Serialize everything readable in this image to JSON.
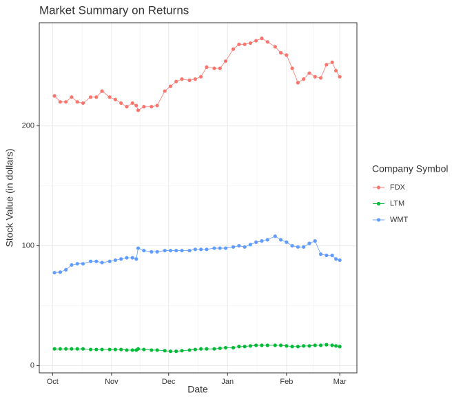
{
  "chart_data": {
    "type": "line",
    "title": "Market Summary on Returns",
    "x_label": "Date",
    "y_label": "Stock Value (in dollars)",
    "legend_title": "Company Symbol",
    "legend_position": "right",
    "grid": true,
    "markers": true,
    "x": [
      1,
      4,
      7,
      10,
      13,
      16,
      20,
      23,
      26,
      30,
      33,
      36,
      39,
      42,
      44,
      45,
      48,
      52,
      55,
      59,
      62,
      65,
      68,
      72,
      75,
      78,
      81,
      85,
      88,
      91,
      95,
      98,
      101,
      104,
      107,
      110,
      113,
      117,
      120,
      123,
      126,
      129,
      132,
      135,
      138,
      141,
      144,
      147,
      149,
      151
    ],
    "xlim": [
      -7,
      160
    ],
    "xticks": [
      {
        "value": 0,
        "label": "Oct"
      },
      {
        "value": 31,
        "label": "Nov"
      },
      {
        "value": 61,
        "label": "Dec"
      },
      {
        "value": 92,
        "label": "Jan"
      },
      {
        "value": 123,
        "label": "Feb"
      },
      {
        "value": 151,
        "label": "Mar"
      }
    ],
    "ylim": [
      -6,
      286
    ],
    "yticks": [
      0,
      100,
      200
    ],
    "series": [
      {
        "name": "FDX",
        "color": "#F8766D",
        "values": [
          225,
          220,
          220,
          224,
          220,
          219,
          224,
          224,
          229,
          224,
          222,
          219,
          216,
          219,
          217,
          213,
          216,
          216,
          217,
          229,
          233,
          237,
          239,
          238,
          239,
          241,
          249,
          248,
          248,
          254,
          264,
          268,
          268,
          269,
          271,
          273,
          270,
          266,
          261,
          259,
          248,
          236,
          239,
          244,
          241,
          240,
          251,
          253,
          246,
          241
        ]
      },
      {
        "name": "LTM",
        "color": "#00BA38",
        "values": [
          14,
          14,
          14,
          14,
          14,
          14,
          13.5,
          13.5,
          13.5,
          13.5,
          13.5,
          13.5,
          13,
          13,
          13,
          14,
          13.5,
          13,
          13,
          12.5,
          12,
          12,
          12.5,
          13,
          13.5,
          14,
          14,
          14,
          14.5,
          15,
          15,
          16,
          16,
          16.5,
          17,
          17,
          17,
          17,
          17,
          16.5,
          16,
          16,
          16.5,
          16.5,
          17,
          17,
          17.5,
          17,
          16.5,
          16
        ]
      },
      {
        "name": "WMT",
        "color": "#619CFF",
        "values": [
          77.6,
          78,
          80,
          84,
          85,
          85,
          87,
          87,
          86,
          87,
          88,
          89,
          90,
          90,
          89,
          98,
          96,
          95,
          95,
          96,
          96,
          96,
          96,
          96,
          97,
          97,
          97,
          98,
          98,
          98,
          99,
          100,
          99,
          101,
          103,
          104,
          105,
          108,
          105,
          103,
          100,
          99,
          99,
          102,
          104,
          93,
          92,
          92,
          89,
          88
        ]
      }
    ]
  }
}
